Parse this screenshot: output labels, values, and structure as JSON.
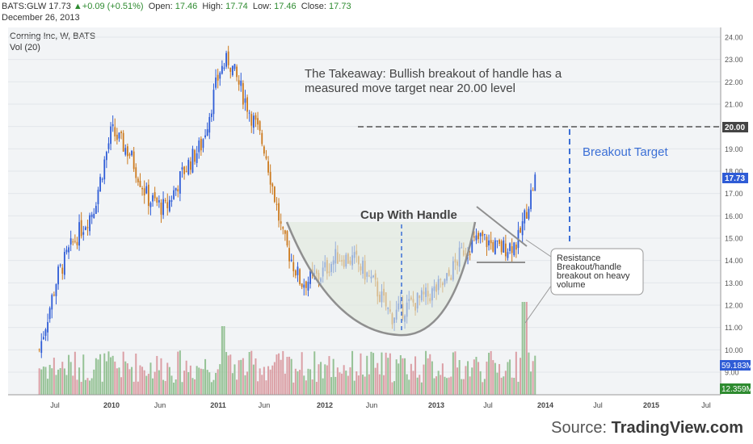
{
  "header": {
    "symbol": "BATS:GLW",
    "last": "17.73",
    "change": "+0.09 (+0.51%)",
    "open_label": "Open:",
    "open": "17.46",
    "high_label": "High:",
    "high": "17.74",
    "low_label": "Low:",
    "low": "17.46",
    "close_label": "Close:",
    "close": "17.73",
    "date": "December 26, 2013"
  },
  "legend": {
    "title": "Corning Inc, W, BATS",
    "volume": "Vol (20)"
  },
  "colors": {
    "up": "#2f5cd6",
    "down": "#cc7a1e",
    "vol_up": "#8fbf8f",
    "vol_down": "#d99aa0",
    "accent": "#3b6fd6",
    "background": "#f2f4f6"
  },
  "annotations": {
    "takeaway_line1": "The Takeaway: Bullish breakout of handle has a",
    "takeaway_line2": "measured move target near 20.00 level",
    "cup_label": "Cup With Handle",
    "breakout_target": "Breakout Target",
    "callout_lines": [
      "Resistance",
      "Breakout/handle",
      "breakout on heavy",
      "volume"
    ],
    "target_price_tag": "20.00",
    "last_price_tag": "17.73",
    "vol_tag_1": "59.183M",
    "vol_tag_2": "12.359M"
  },
  "chart_data": {
    "type": "candlestick",
    "title": "Corning Inc, W, BATS",
    "x_ticks": [
      "Jul",
      "2010",
      "Jun",
      "2011",
      "Jun",
      "2012",
      "Jun",
      "2013",
      "Jul",
      "2014",
      "Jul",
      "2015",
      "Jul"
    ],
    "y_ticks": [
      "24.00",
      "23.00",
      "22.00",
      "21.00",
      "20.00",
      "19.00",
      "18.00",
      "17.00",
      "16.00",
      "15.00",
      "14.00",
      "13.00",
      "12.00",
      "11.00",
      "10.00",
      "9.00"
    ],
    "ylim": [
      8.9,
      24.4
    ],
    "price_path": [
      {
        "date": "2009-05",
        "close": 10.0
      },
      {
        "date": "2009-07",
        "close": 13.3
      },
      {
        "date": "2009-09",
        "close": 15.0
      },
      {
        "date": "2009-11",
        "close": 16.3
      },
      {
        "date": "2010-01",
        "close": 19.8
      },
      {
        "date": "2010-03",
        "close": 18.8
      },
      {
        "date": "2010-05",
        "close": 16.8
      },
      {
        "date": "2010-07",
        "close": 16.3
      },
      {
        "date": "2010-09",
        "close": 18.0
      },
      {
        "date": "2010-11",
        "close": 19.2
      },
      {
        "date": "2011-01",
        "close": 22.5
      },
      {
        "date": "2011-02",
        "close": 23.0
      },
      {
        "date": "2011-04",
        "close": 21.0
      },
      {
        "date": "2011-06",
        "close": 19.0
      },
      {
        "date": "2011-08",
        "close": 15.0
      },
      {
        "date": "2011-10",
        "close": 13.0
      },
      {
        "date": "2011-12",
        "close": 13.3
      },
      {
        "date": "2012-02",
        "close": 14.2
      },
      {
        "date": "2012-04",
        "close": 14.0
      },
      {
        "date": "2012-06",
        "close": 13.0
      },
      {
        "date": "2012-08",
        "close": 11.5
      },
      {
        "date": "2012-10",
        "close": 12.0
      },
      {
        "date": "2012-12",
        "close": 12.4
      },
      {
        "date": "2013-02",
        "close": 13.0
      },
      {
        "date": "2013-04",
        "close": 14.5
      },
      {
        "date": "2013-06",
        "close": 15.0
      },
      {
        "date": "2013-08",
        "close": 14.5
      },
      {
        "date": "2013-10",
        "close": 14.8
      },
      {
        "date": "2013-12",
        "close": 17.73
      }
    ],
    "breakout_target": 20.0,
    "last_close": 17.73,
    "grid": true
  }
}
